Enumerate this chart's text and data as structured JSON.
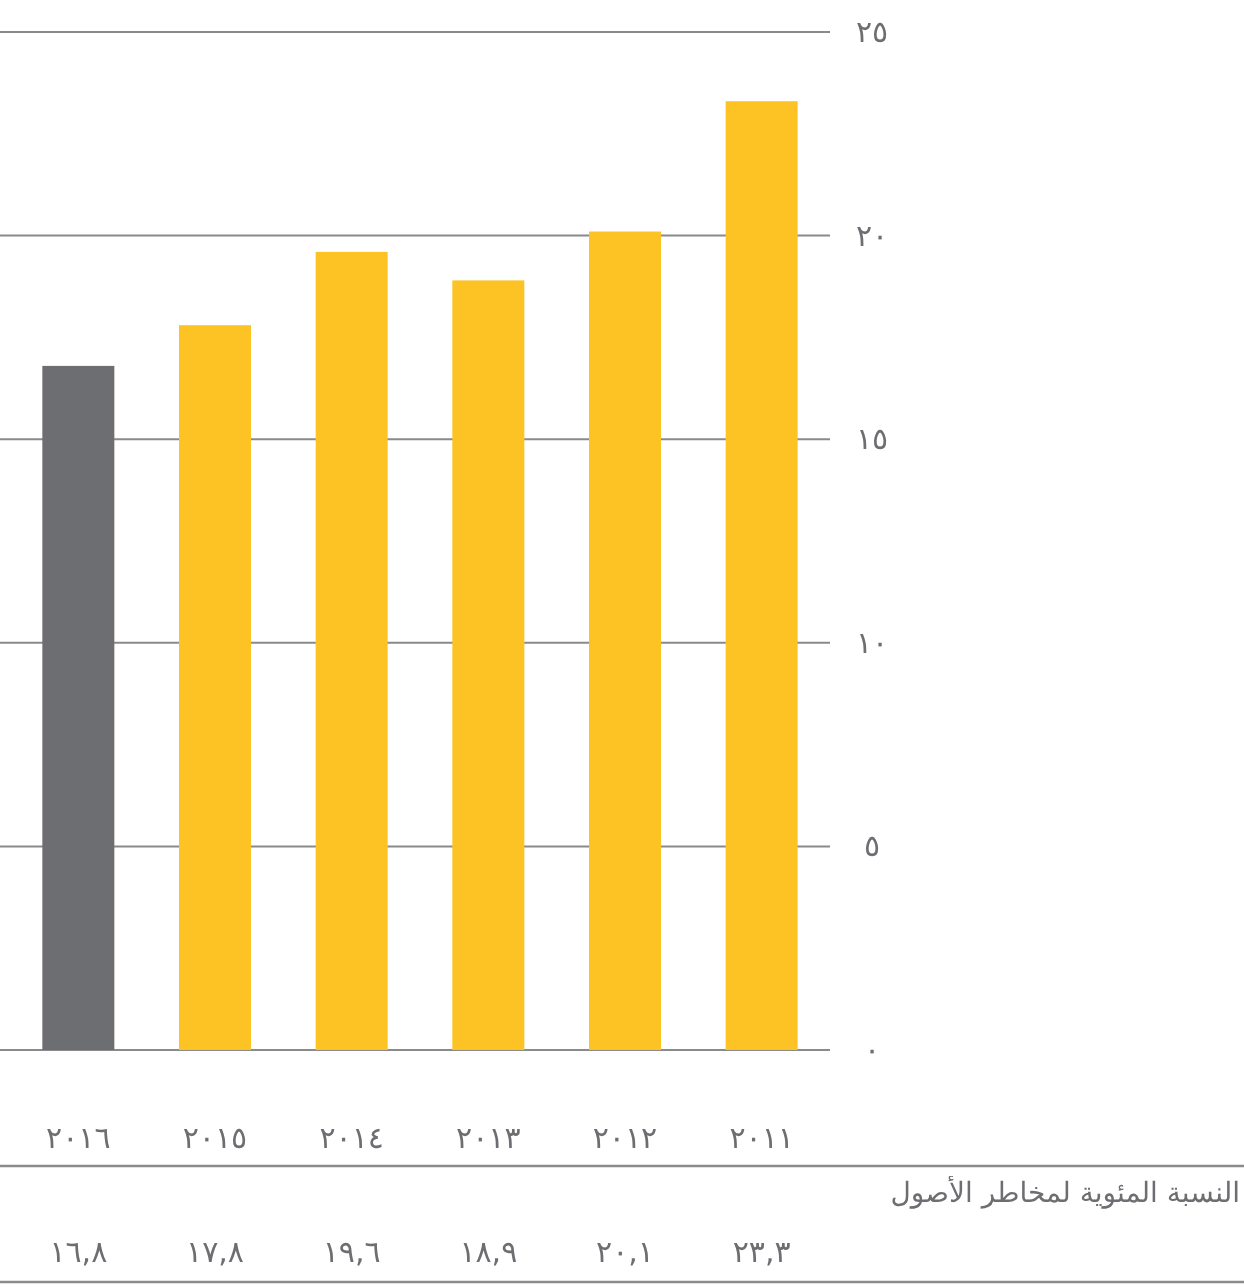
{
  "chart_data": {
    "type": "bar",
    "categories": [
      "٢٠١٦",
      "٢٠١٥",
      "٢٠١٤",
      "٢٠١٣",
      "٢٠١٢",
      "٢٠١١"
    ],
    "values": [
      16.8,
      17.8,
      19.6,
      18.9,
      20.1,
      23.3
    ],
    "colors": [
      "#6d6e71",
      "#fdc325",
      "#fdc325",
      "#fdc325",
      "#fdc325",
      "#fdc325"
    ],
    "value_labels": [
      "١٦,٨",
      "١٧,٨",
      "١٩,٦",
      "١٨,٩",
      "٢٠,١",
      "٢٣,٣"
    ],
    "ylim": [
      0,
      25
    ],
    "yticks": [
      {
        "value": 0,
        "label": "٠"
      },
      {
        "value": 5,
        "label": "٥"
      },
      {
        "value": 10,
        "label": "١٠"
      },
      {
        "value": 15,
        "label": "١٥"
      },
      {
        "value": 20,
        "label": "٢٠"
      },
      {
        "value": 25,
        "label": "٢٥"
      }
    ],
    "grid": "y",
    "annotations": [
      "النسبة المئوية لمخاطر الأصول"
    ]
  }
}
